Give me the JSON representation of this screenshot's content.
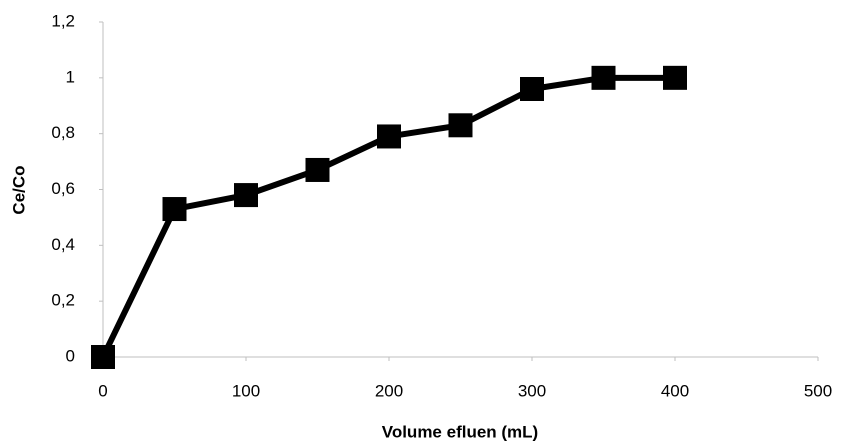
{
  "chart_data": {
    "type": "line",
    "x": [
      0,
      50,
      100,
      150,
      200,
      250,
      300,
      350,
      400
    ],
    "values": [
      0,
      0.53,
      0.58,
      0.67,
      0.79,
      0.83,
      0.96,
      1.0,
      1.0
    ],
    "color": "#000000",
    "xlabel": "Volume efluen (mL)",
    "ylabel": "Ce/Co",
    "xlim": [
      0,
      500
    ],
    "xticks": [
      0,
      100,
      200,
      300,
      400,
      500
    ],
    "ylim": [
      0,
      1.2
    ],
    "yticks": [
      0,
      {
        "value": 0.2,
        "label": "0,2"
      },
      {
        "value": 0.4,
        "label": "0,4"
      },
      {
        "value": 0.6,
        "label": "0,6"
      },
      {
        "value": 0.8,
        "label": "0,8"
      },
      1,
      {
        "value": 1.2,
        "label": "1,2"
      }
    ],
    "grid": false
  }
}
